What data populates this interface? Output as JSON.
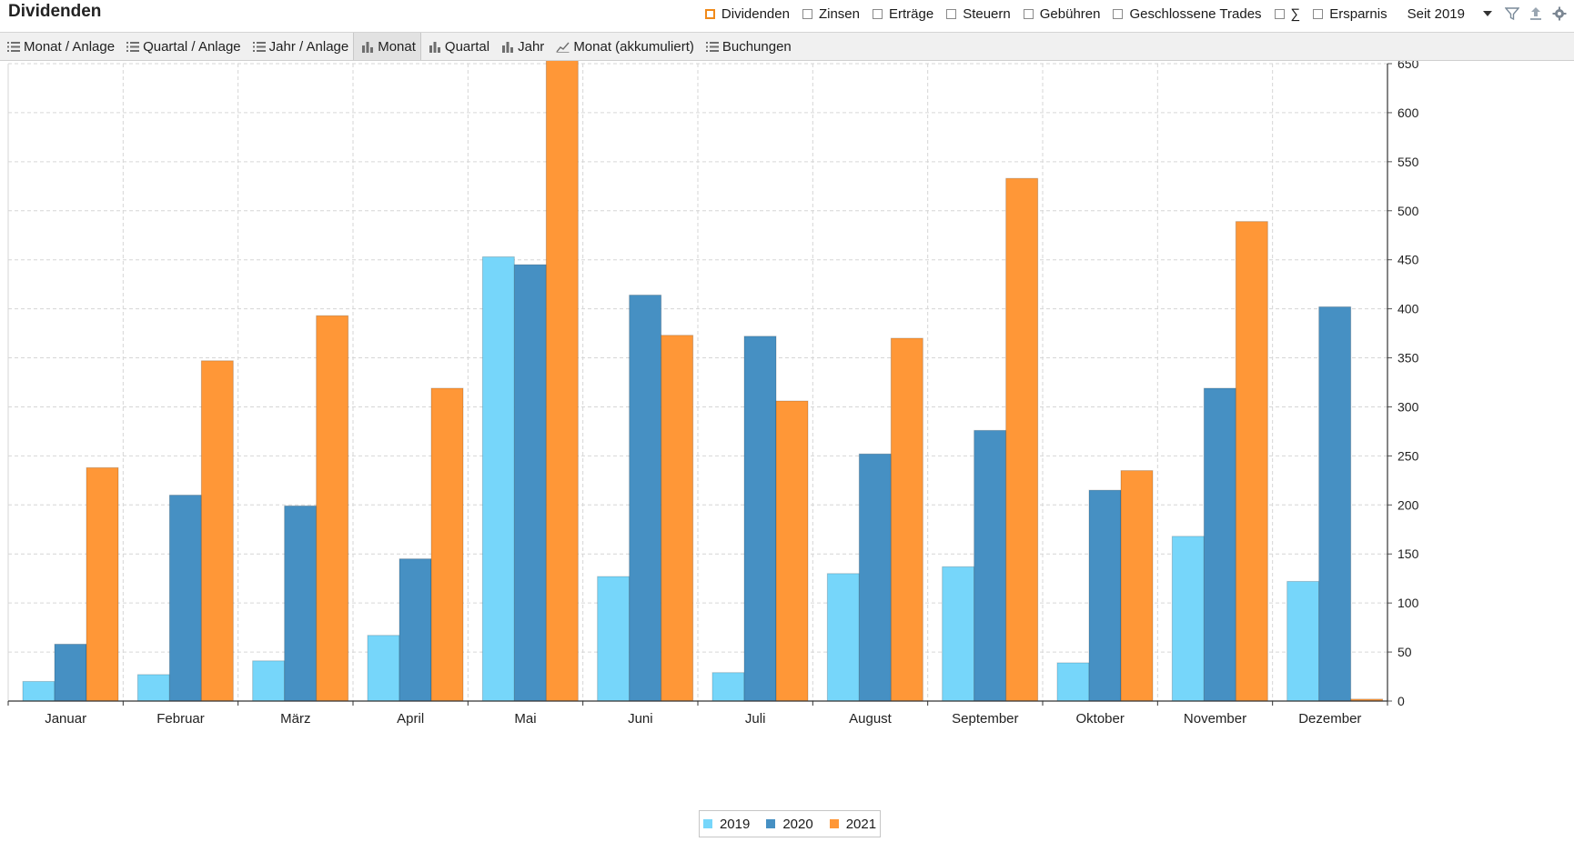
{
  "header": {
    "title": "Dividenden",
    "filters": [
      {
        "label": "Dividenden",
        "checked": true
      },
      {
        "label": "Zinsen",
        "checked": false
      },
      {
        "label": "Erträge",
        "checked": false
      },
      {
        "label": "Steuern",
        "checked": false
      },
      {
        "label": "Gebühren",
        "checked": false
      },
      {
        "label": "Geschlossene Trades",
        "checked": false
      },
      {
        "label": "∑",
        "checked": false
      },
      {
        "label": "Ersparnis",
        "checked": false
      }
    ],
    "period": "Seit 2019",
    "tools": [
      "filter-icon",
      "export-icon",
      "settings-icon"
    ]
  },
  "tabs": [
    {
      "label": "Monat / Anlage",
      "icon": "list-icon"
    },
    {
      "label": "Quartal / Anlage",
      "icon": "list-icon"
    },
    {
      "label": "Jahr / Anlage",
      "icon": "list-icon"
    },
    {
      "label": "Monat",
      "icon": "bar-chart-icon",
      "active": true
    },
    {
      "label": "Quartal",
      "icon": "bar-chart-icon"
    },
    {
      "label": "Jahr",
      "icon": "bar-chart-icon"
    },
    {
      "label": "Monat (akkumuliert)",
      "icon": "line-chart-icon"
    },
    {
      "label": "Buchungen",
      "icon": "list-icon"
    }
  ],
  "chart_data": {
    "type": "bar",
    "categories": [
      "Januar",
      "Februar",
      "März",
      "April",
      "Mai",
      "Juni",
      "Juli",
      "August",
      "September",
      "Oktober",
      "November",
      "Dezember"
    ],
    "series": [
      {
        "name": "2019",
        "color": "#76d6fa",
        "values": [
          20,
          27,
          41,
          67,
          453,
          127,
          29,
          130,
          137,
          39,
          168,
          122
        ]
      },
      {
        "name": "2020",
        "color": "#4690c3",
        "values": [
          58,
          210,
          199,
          145,
          445,
          414,
          372,
          252,
          276,
          215,
          319,
          402
        ]
      },
      {
        "name": "2021",
        "color": "#ff9737",
        "values": [
          238,
          347,
          393,
          319,
          654,
          373,
          306,
          370,
          533,
          235,
          489,
          2
        ]
      }
    ],
    "ylim": [
      0,
      650
    ],
    "yticks": [
      0,
      50,
      100,
      150,
      200,
      250,
      300,
      350,
      400,
      450,
      500,
      550,
      600,
      650
    ],
    "y_axis_position": "right",
    "grid": true,
    "legend_position": "bottom-center"
  }
}
